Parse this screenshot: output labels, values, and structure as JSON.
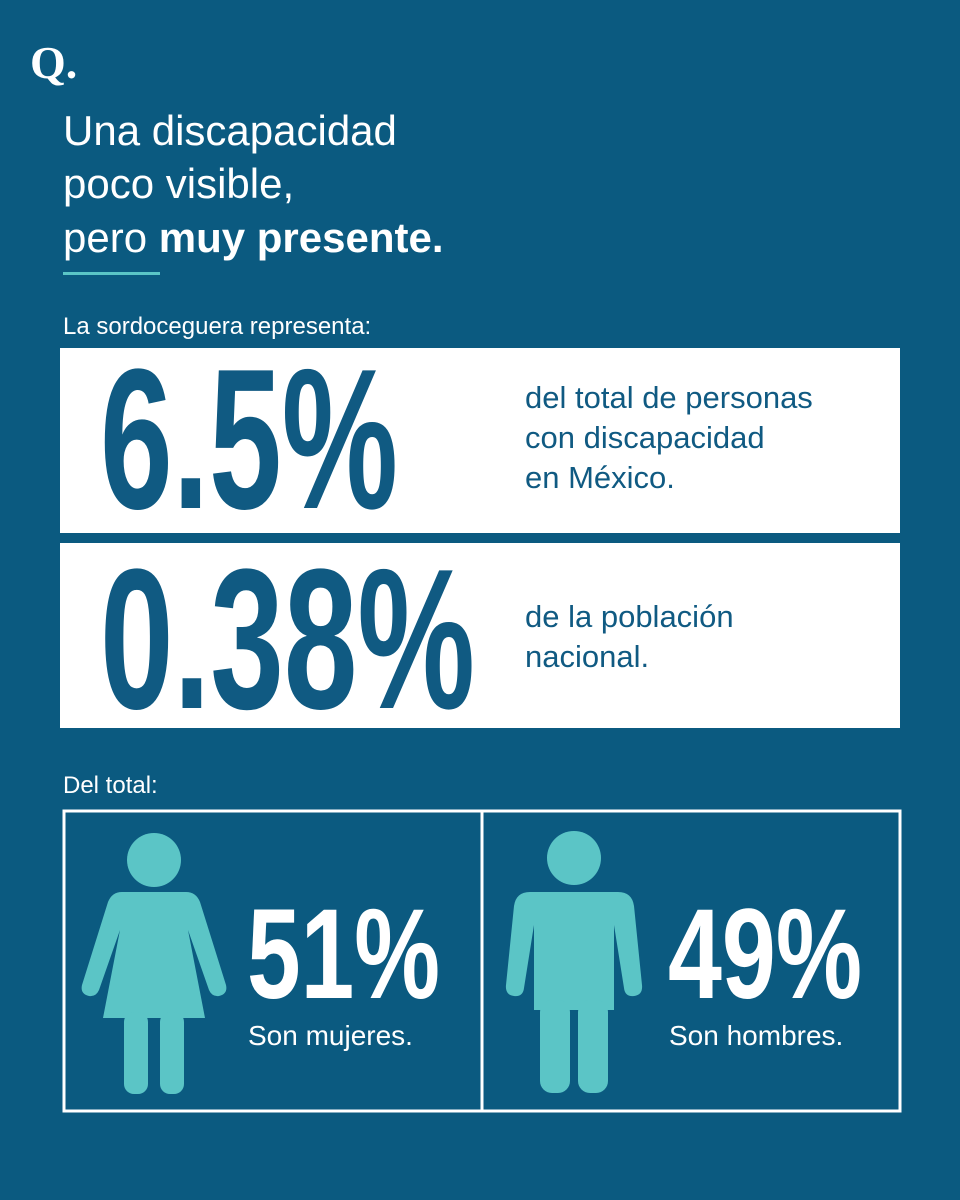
{
  "logo": "Q.",
  "header": {
    "title_lines": [
      "Una discapacidad",
      "poco visible,"
    ],
    "title_last_regular": "pero ",
    "title_last_bold": "muy presente."
  },
  "intro": "La sordoceguera representa:",
  "stats": [
    {
      "figure": "6.5%",
      "lines": [
        "del total de personas",
        "con discapacidad",
        "en México."
      ]
    },
    {
      "figure": "0.38%",
      "lines": [
        "de la población",
        "nacional."
      ]
    }
  ],
  "breakdown_label": "Del total:",
  "breakdown": [
    {
      "figure": "51%",
      "caption": "Son mujeres."
    },
    {
      "figure": "49%",
      "caption": "Son hombres."
    }
  ]
}
